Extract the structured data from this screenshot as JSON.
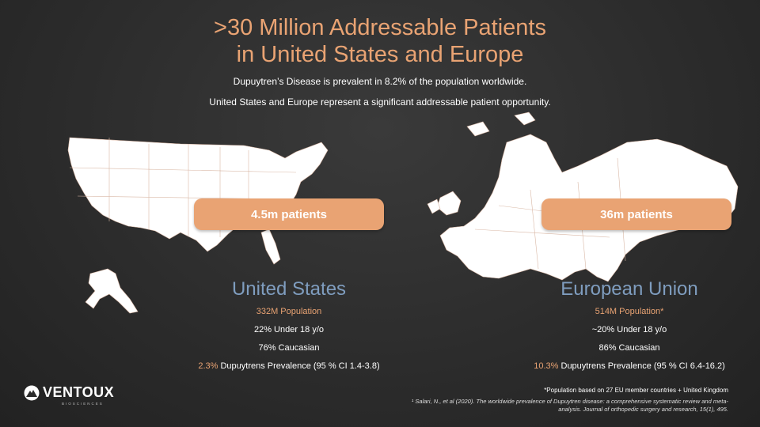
{
  "title": {
    "line1": ">30 Million Addressable Patients",
    "line2": "in United States and Europe"
  },
  "subtitle": {
    "line1": "Dupuytren’s Disease is prevalent in 8.2% of the population worldwide.",
    "line2": "United States and Europe represent a significant addressable patient opportunity."
  },
  "us": {
    "pill": "4.5m patients",
    "region": "United States",
    "population": "332M Population",
    "under18": "22% Under 18 y/o",
    "caucasian": "76% Caucasian",
    "prevalence_pct": "2.3%",
    "prevalence_text": " Dupuytrens Prevalence (95 % CI 1.4-3.8)"
  },
  "eu": {
    "pill": "36m patients",
    "region": "European Union",
    "population": "514M Population*",
    "under18": "~20% Under 18 y/o",
    "caucasian": "86% Caucasian",
    "prevalence_pct": "10.3%",
    "prevalence_text": " Dupuytrens Prevalence (95 % CI 6.4-16.2)"
  },
  "footnotes": {
    "population_note": "*Population based on 27 EU member countries + United Kingdom",
    "citation_line1": "¹ Salari, N., et al (2020). The worldwide prevalence of Dupuytren disease: a comprehensive systematic review and meta-",
    "citation_line2": "analysis. Journal of orthopedic surgery and research, 15(1), 495."
  },
  "logo": {
    "name": "VENTOUX",
    "tagline": "BIOSCIENCES"
  },
  "colors": {
    "accent": "#E9A373",
    "region_blue": "#7F9DBF",
    "background": "#2b2b2b"
  }
}
